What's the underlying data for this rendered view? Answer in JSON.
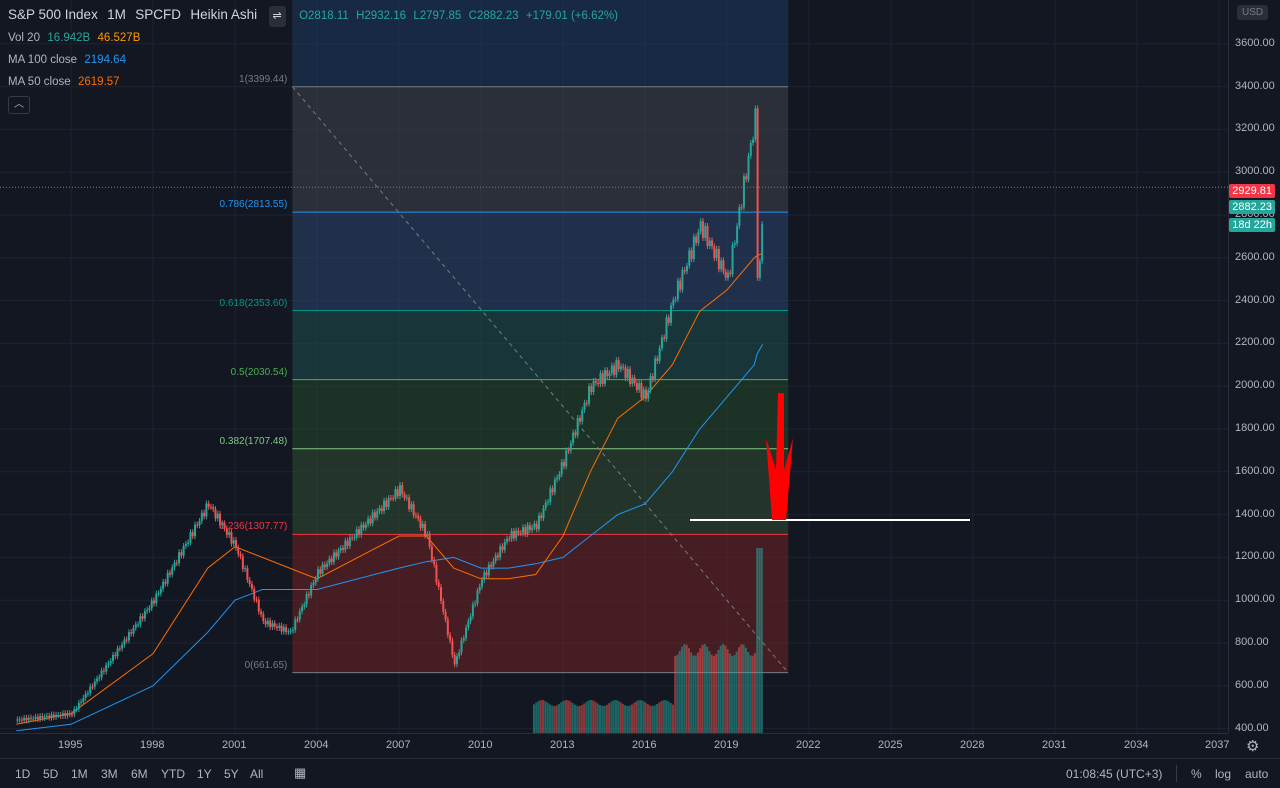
{
  "legend": {
    "symbol": "S&P 500 Index",
    "interval": "1M",
    "exchange": "SPCFD",
    "chart_style": "Heikin Ashi",
    "ohlc": {
      "o": "O2818.11",
      "h": "H2932.16",
      "l": "L2797.85",
      "c": "C2882.23",
      "chg": "+179.01 (+6.62%)"
    },
    "vol": {
      "label": "Vol 20",
      "v1": "16.942B",
      "v2": "46.527B"
    },
    "ma100": {
      "label": "MA 100 close",
      "value": "2194.64"
    },
    "ma50": {
      "label": "MA 50 close",
      "value": "2619.57"
    }
  },
  "colors": {
    "up": "#26a69a",
    "down": "#ef5350",
    "ma50": "#ff6d00",
    "ma100": "#2196f3",
    "arrow": "#ff0000"
  },
  "fib": [
    {
      "label": "1(3399.44)",
      "value": 3399.44,
      "color": "#787b86"
    },
    {
      "label": "0.786(2813.55)",
      "value": 2813.55,
      "color": "#2196f3"
    },
    {
      "label": "0.618(2353.60)",
      "value": 2353.6,
      "color": "#009688"
    },
    {
      "label": "0.5(2030.54)",
      "value": 2030.54,
      "color": "#4caf50"
    },
    {
      "label": "0.382(1707.48)",
      "value": 1707.48,
      "color": "#81c784"
    },
    {
      "label": "0.236(1307.77)",
      "value": 1307.77,
      "color": "#f23645"
    },
    {
      "label": "0(661.65)",
      "value": 661.65,
      "color": "#787b86"
    }
  ],
  "price_axis": {
    "currency": "USD",
    "ticks": [
      "3600.00",
      "3400.00",
      "3200.00",
      "3000.00",
      "2800.00",
      "2600.00",
      "2400.00",
      "2200.00",
      "2000.00",
      "1800.00",
      "1600.00",
      "1400.00",
      "1200.00",
      "1000.00",
      "800.00",
      "600.00",
      "400.00"
    ],
    "high_tag": "2929.81",
    "last_tag": "2882.23",
    "countdown": "18d 22h"
  },
  "time_axis": [
    "1995",
    "1998",
    "2001",
    "2004",
    "2007",
    "2010",
    "2013",
    "2016",
    "2019",
    "2022",
    "2025",
    "2028",
    "2031",
    "2034",
    "2037"
  ],
  "ranges": [
    "1D",
    "5D",
    "1M",
    "3M",
    "6M",
    "YTD",
    "1Y",
    "5Y",
    "All"
  ],
  "bottom": {
    "clock": "01:08:45 (UTC+3)",
    "percent": "%",
    "log": "log",
    "auto": "auto"
  },
  "chart_data": {
    "type": "line",
    "title": "S&P 500 Index · 1M · SPCFD · Heikin Ashi",
    "x": [
      1993,
      1995,
      1998,
      2000,
      2001,
      2002,
      2003,
      2004,
      2007,
      2008,
      2009,
      2010,
      2011,
      2012,
      2013,
      2014,
      2015,
      2016,
      2017,
      2018,
      2019,
      2020,
      2020.1,
      2020.3
    ],
    "series": [
      {
        "name": "S&P 500 Index",
        "values": [
          440,
          470,
          1000,
          1450,
          1250,
          900,
          850,
          1130,
          1520,
          1300,
          700,
          1100,
          1300,
          1350,
          1650,
          2000,
          2100,
          1950,
          2400,
          2750,
          2500,
          3250,
          2400,
          2882
        ]
      },
      {
        "name": "MA 50 close",
        "values": [
          420,
          470,
          750,
          1150,
          1250,
          1200,
          1150,
          1100,
          1300,
          1300,
          1150,
          1100,
          1100,
          1120,
          1300,
          1600,
          1850,
          1950,
          2100,
          2350,
          2450,
          2600,
          2610,
          2620
        ]
      },
      {
        "name": "MA 100 close",
        "values": [
          390,
          420,
          600,
          850,
          1000,
          1050,
          1050,
          1050,
          1150,
          1180,
          1200,
          1150,
          1150,
          1170,
          1200,
          1300,
          1400,
          1450,
          1600,
          1800,
          1950,
          2100,
          2150,
          2195
        ]
      }
    ],
    "ylim": [
      300,
      3800
    ],
    "xlim": [
      1993,
      2037
    ]
  }
}
